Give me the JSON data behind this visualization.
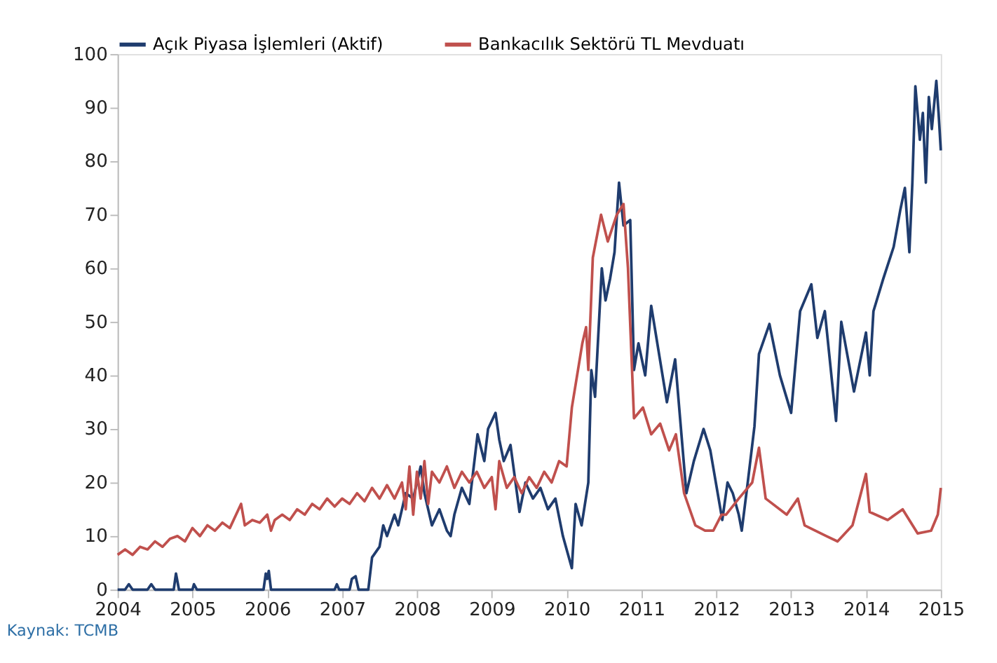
{
  "chart_data": {
    "type": "line",
    "annotations": [
      "Kaynak: TCMB"
    ],
    "xlim": [
      2004,
      2015
    ],
    "xticks": [
      2004,
      2005,
      2006,
      2007,
      2008,
      2009,
      2010,
      2011,
      2012,
      2013,
      2014,
      2015
    ],
    "ylim": [
      0,
      100
    ],
    "yticks": [
      0,
      10,
      20,
      30,
      40,
      50,
      60,
      70,
      80,
      90,
      100
    ],
    "grid": false,
    "legend": "top",
    "marker": "none",
    "line_style": "solid",
    "series": [
      {
        "name": "Açık Piyasa İşlemleri (Aktif)",
        "color": "#1f3c6e",
        "x": [
          2004.0,
          2004.1,
          2004.15,
          2004.2,
          2004.4,
          2004.45,
          2004.5,
          2004.75,
          2004.78,
          2004.82,
          2005.0,
          2005.02,
          2005.06,
          2005.95,
          2005.98,
          2006.0,
          2006.02,
          2006.05,
          2006.9,
          2006.93,
          2006.96,
          2007.1,
          2007.13,
          2007.18,
          2007.22,
          2007.35,
          2007.4,
          2007.5,
          2007.55,
          2007.6,
          2007.7,
          2007.75,
          2007.85,
          2007.95,
          2008.0,
          2008.05,
          2008.1,
          2008.2,
          2008.3,
          2008.4,
          2008.45,
          2008.5,
          2008.6,
          2008.7,
          2008.81,
          2008.9,
          2008.95,
          2009.05,
          2009.1,
          2009.16,
          2009.25,
          2009.37,
          2009.45,
          2009.55,
          2009.65,
          2009.75,
          2009.85,
          2009.95,
          2010.07,
          2010.12,
          2010.2,
          2010.29,
          2010.33,
          2010.38,
          2010.47,
          2010.52,
          2010.58,
          2010.64,
          2010.7,
          2010.76,
          2010.85,
          2010.9,
          2010.96,
          2011.05,
          2011.13,
          2011.2,
          2011.34,
          2011.45,
          2011.6,
          2011.7,
          2011.83,
          2011.92,
          2012.08,
          2012.15,
          2012.22,
          2012.3,
          2012.34,
          2012.42,
          2012.51,
          2012.57,
          2012.71,
          2012.85,
          2013.0,
          2013.12,
          2013.27,
          2013.35,
          2013.45,
          2013.6,
          2013.67,
          2013.84,
          2014.0,
          2014.05,
          2014.1,
          2014.23,
          2014.37,
          2014.46,
          2014.52,
          2014.58,
          2014.62,
          2014.66,
          2014.72,
          2014.76,
          2014.8,
          2014.84,
          2014.88,
          2014.94,
          2014.97,
          2015.0
        ],
        "values": [
          0,
          0,
          1,
          0,
          0,
          1,
          0,
          0,
          3,
          0,
          0,
          1,
          0,
          0,
          3,
          2,
          3.5,
          0,
          0,
          1,
          0,
          0,
          2,
          2.5,
          0,
          0,
          6,
          8,
          12,
          10,
          14,
          12,
          18,
          17,
          20,
          23,
          18,
          12,
          15,
          11,
          10,
          14,
          19,
          16,
          29,
          24,
          30,
          33,
          28,
          24,
          27,
          14.5,
          20,
          17,
          19,
          15,
          17,
          10,
          4,
          16,
          12,
          20,
          41,
          36,
          60,
          54,
          58,
          63,
          76,
          68,
          69,
          41,
          46,
          40,
          53,
          47,
          35,
          43,
          18,
          24,
          30,
          26,
          13,
          20,
          18,
          14,
          11,
          20,
          30.5,
          44,
          49.6,
          40,
          33,
          52,
          57,
          47,
          52,
          31.5,
          50,
          37,
          48,
          40,
          52,
          58,
          64,
          71,
          75,
          63,
          76,
          94,
          84,
          89,
          76,
          92,
          86,
          95,
          89,
          82
        ]
      },
      {
        "name": "Bankacılık Sektörü TL Mevduatı",
        "color": "#c0504d",
        "x": [
          2004.0,
          2004.1,
          2004.2,
          2004.3,
          2004.4,
          2004.5,
          2004.6,
          2004.7,
          2004.8,
          2004.9,
          2005.0,
          2005.1,
          2005.2,
          2005.3,
          2005.4,
          2005.5,
          2005.65,
          2005.7,
          2005.8,
          2005.9,
          2006.0,
          2006.05,
          2006.1,
          2006.2,
          2006.3,
          2006.4,
          2006.5,
          2006.6,
          2006.7,
          2006.8,
          2006.9,
          2007.0,
          2007.1,
          2007.2,
          2007.3,
          2007.4,
          2007.5,
          2007.6,
          2007.7,
          2007.8,
          2007.85,
          2007.9,
          2007.95,
          2008.0,
          2008.05,
          2008.1,
          2008.15,
          2008.2,
          2008.3,
          2008.4,
          2008.5,
          2008.6,
          2008.7,
          2008.8,
          2008.9,
          2009.0,
          2009.05,
          2009.1,
          2009.2,
          2009.3,
          2009.4,
          2009.5,
          2009.6,
          2009.7,
          2009.8,
          2009.9,
          2010.0,
          2010.07,
          2010.21,
          2010.26,
          2010.29,
          2010.35,
          2010.46,
          2010.55,
          2010.67,
          2010.76,
          2010.82,
          2010.9,
          2011.02,
          2011.13,
          2011.25,
          2011.37,
          2011.46,
          2011.57,
          2011.72,
          2011.85,
          2011.96,
          2012.07,
          2012.13,
          2012.3,
          2012.48,
          2012.57,
          2012.66,
          2012.94,
          2013.09,
          2013.18,
          2013.47,
          2013.62,
          2013.82,
          2014.0,
          2014.05,
          2014.29,
          2014.49,
          2014.69,
          2014.87,
          2014.96,
          2015.0
        ],
        "values": [
          6.5,
          7.5,
          6.5,
          8,
          7.5,
          9,
          8,
          9.5,
          10,
          9,
          11.5,
          10,
          12,
          11,
          12.5,
          11.5,
          16,
          12,
          13,
          12.5,
          14,
          11,
          13,
          14,
          13,
          15,
          14,
          16,
          15,
          17,
          15.5,
          17,
          16,
          18,
          16.5,
          19,
          17,
          19.5,
          17,
          20,
          15,
          23,
          14,
          22,
          17,
          24,
          16,
          22,
          20,
          23,
          19,
          22,
          20,
          22,
          19,
          21,
          15,
          24,
          19,
          21,
          18,
          21,
          19,
          22,
          20,
          24,
          23,
          34,
          46,
          49,
          41,
          62,
          70,
          65,
          70,
          72,
          60,
          32,
          34,
          29,
          31,
          26,
          29,
          18,
          12,
          11,
          11,
          14,
          14,
          17,
          20,
          26.5,
          17,
          14,
          17,
          12,
          10,
          9,
          12,
          21.6,
          14.5,
          13,
          15,
          10.5,
          11,
          14,
          19
        ]
      }
    ]
  }
}
